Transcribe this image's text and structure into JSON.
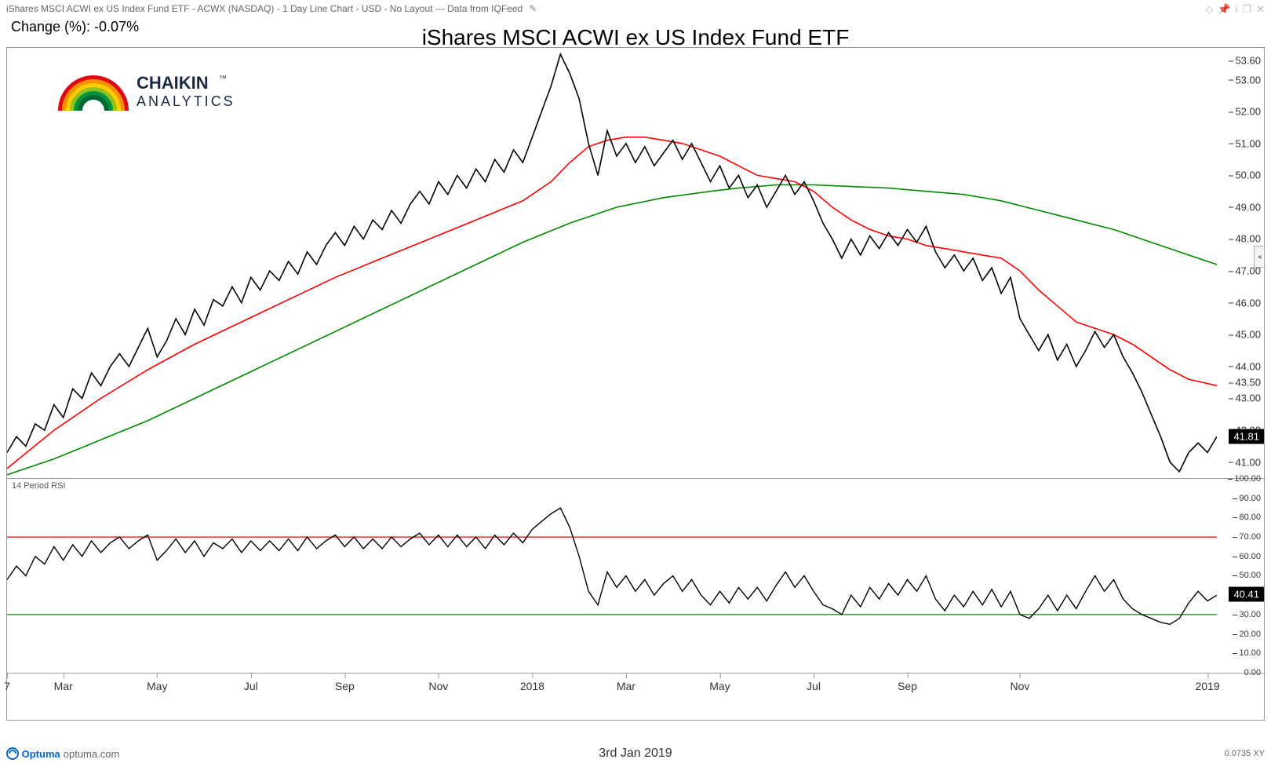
{
  "header": {
    "description": "iShares MSCI ACWI ex US Index Fund ETF - ACWX (NASDAQ) - 1 Day Line Chart - USD - No Layout --- Data from IQFeed",
    "change_label": "Change (%): -0.07%",
    "title": "iShares MSCI ACWI ex US Index Fund ETF"
  },
  "logo": {
    "brand_top": "CHAIKIN",
    "brand_bottom": "ANALYTICS",
    "tm": "™",
    "arc_colors": [
      "#e30613",
      "#f39200",
      "#ffcc00",
      "#95c11f",
      "#009640",
      "#006633"
    ]
  },
  "footer": {
    "software": "Optuma",
    "url": "optuma.com",
    "date": "3rd Jan 2019",
    "scale_info": "0.0735 XY"
  },
  "price_chart": {
    "type": "line",
    "ylim": [
      40.5,
      54.0
    ],
    "yticks": [
      41.0,
      41.81,
      42.0,
      43.0,
      43.5,
      44.0,
      45.0,
      46.0,
      47.0,
      48.0,
      49.0,
      50.0,
      51.0,
      52.0,
      53.0,
      53.6
    ],
    "current_value": 41.81,
    "current_label": "41.81",
    "background_color": "#ffffff",
    "axis_color": "#333333",
    "series": {
      "price": {
        "color": "#000000",
        "width": 1.6
      },
      "ma_fast": {
        "color": "#ff0000",
        "width": 1.6
      },
      "ma_slow": {
        "color": "#008800",
        "width": 1.6
      }
    },
    "price_data": [
      [
        0,
        41.3
      ],
      [
        1,
        41.8
      ],
      [
        2,
        41.5
      ],
      [
        3,
        42.2
      ],
      [
        4,
        42.0
      ],
      [
        5,
        42.8
      ],
      [
        6,
        42.4
      ],
      [
        7,
        43.3
      ],
      [
        8,
        43.0
      ],
      [
        9,
        43.8
      ],
      [
        10,
        43.4
      ],
      [
        11,
        44.0
      ],
      [
        12,
        44.4
      ],
      [
        13,
        44.0
      ],
      [
        14,
        44.6
      ],
      [
        15,
        45.2
      ],
      [
        16,
        44.3
      ],
      [
        17,
        44.8
      ],
      [
        18,
        45.5
      ],
      [
        19,
        45.0
      ],
      [
        20,
        45.8
      ],
      [
        21,
        45.3
      ],
      [
        22,
        46.1
      ],
      [
        23,
        45.9
      ],
      [
        24,
        46.5
      ],
      [
        25,
        46.0
      ],
      [
        26,
        46.8
      ],
      [
        27,
        46.4
      ],
      [
        28,
        47.0
      ],
      [
        29,
        46.7
      ],
      [
        30,
        47.3
      ],
      [
        31,
        46.9
      ],
      [
        32,
        47.6
      ],
      [
        33,
        47.2
      ],
      [
        34,
        47.8
      ],
      [
        35,
        48.2
      ],
      [
        36,
        47.8
      ],
      [
        37,
        48.4
      ],
      [
        38,
        48.0
      ],
      [
        39,
        48.6
      ],
      [
        40,
        48.3
      ],
      [
        41,
        48.9
      ],
      [
        42,
        48.5
      ],
      [
        43,
        49.1
      ],
      [
        44,
        49.5
      ],
      [
        45,
        49.1
      ],
      [
        46,
        49.8
      ],
      [
        47,
        49.4
      ],
      [
        48,
        50.0
      ],
      [
        49,
        49.6
      ],
      [
        50,
        50.2
      ],
      [
        51,
        49.8
      ],
      [
        52,
        50.5
      ],
      [
        53,
        50.1
      ],
      [
        54,
        50.8
      ],
      [
        55,
        50.4
      ],
      [
        56,
        51.2
      ],
      [
        57,
        52.0
      ],
      [
        58,
        52.8
      ],
      [
        59,
        53.8
      ],
      [
        60,
        53.2
      ],
      [
        61,
        52.4
      ],
      [
        62,
        51.0
      ],
      [
        63,
        50.0
      ],
      [
        64,
        51.4
      ],
      [
        65,
        50.6
      ],
      [
        66,
        51.0
      ],
      [
        67,
        50.4
      ],
      [
        68,
        50.9
      ],
      [
        69,
        50.3
      ],
      [
        70,
        50.7
      ],
      [
        71,
        51.1
      ],
      [
        72,
        50.5
      ],
      [
        73,
        51.0
      ],
      [
        74,
        50.4
      ],
      [
        75,
        49.8
      ],
      [
        76,
        50.3
      ],
      [
        77,
        49.6
      ],
      [
        78,
        50.0
      ],
      [
        79,
        49.3
      ],
      [
        80,
        49.7
      ],
      [
        81,
        49.0
      ],
      [
        82,
        49.5
      ],
      [
        83,
        50.0
      ],
      [
        84,
        49.4
      ],
      [
        85,
        49.8
      ],
      [
        86,
        49.2
      ],
      [
        87,
        48.5
      ],
      [
        88,
        48.0
      ],
      [
        89,
        47.4
      ],
      [
        90,
        48.0
      ],
      [
        91,
        47.5
      ],
      [
        92,
        48.1
      ],
      [
        93,
        47.7
      ],
      [
        94,
        48.2
      ],
      [
        95,
        47.8
      ],
      [
        96,
        48.3
      ],
      [
        97,
        47.9
      ],
      [
        98,
        48.4
      ],
      [
        99,
        47.6
      ],
      [
        100,
        47.1
      ],
      [
        101,
        47.5
      ],
      [
        102,
        47.0
      ],
      [
        103,
        47.4
      ],
      [
        104,
        46.7
      ],
      [
        105,
        47.1
      ],
      [
        106,
        46.3
      ],
      [
        107,
        46.8
      ],
      [
        108,
        45.5
      ],
      [
        109,
        45.0
      ],
      [
        110,
        44.5
      ],
      [
        111,
        45.0
      ],
      [
        112,
        44.2
      ],
      [
        113,
        44.7
      ],
      [
        114,
        44.0
      ],
      [
        115,
        44.5
      ],
      [
        116,
        45.1
      ],
      [
        117,
        44.6
      ],
      [
        118,
        45.0
      ],
      [
        119,
        44.3
      ],
      [
        120,
        43.8
      ],
      [
        121,
        43.2
      ],
      [
        122,
        42.5
      ],
      [
        123,
        41.8
      ],
      [
        124,
        41.0
      ],
      [
        125,
        40.7
      ],
      [
        126,
        41.3
      ],
      [
        127,
        41.6
      ],
      [
        128,
        41.3
      ],
      [
        129,
        41.8
      ]
    ],
    "ma_fast_data": [
      [
        0,
        40.8
      ],
      [
        5,
        42.0
      ],
      [
        10,
        43.0
      ],
      [
        15,
        43.9
      ],
      [
        20,
        44.7
      ],
      [
        25,
        45.4
      ],
      [
        30,
        46.1
      ],
      [
        35,
        46.8
      ],
      [
        40,
        47.4
      ],
      [
        45,
        48.0
      ],
      [
        50,
        48.6
      ],
      [
        55,
        49.2
      ],
      [
        58,
        49.8
      ],
      [
        60,
        50.4
      ],
      [
        62,
        50.9
      ],
      [
        64,
        51.1
      ],
      [
        66,
        51.2
      ],
      [
        68,
        51.2
      ],
      [
        70,
        51.1
      ],
      [
        72,
        51.0
      ],
      [
        74,
        50.8
      ],
      [
        76,
        50.6
      ],
      [
        78,
        50.3
      ],
      [
        80,
        50.0
      ],
      [
        82,
        49.9
      ],
      [
        84,
        49.8
      ],
      [
        86,
        49.5
      ],
      [
        88,
        49.0
      ],
      [
        90,
        48.6
      ],
      [
        92,
        48.3
      ],
      [
        94,
        48.1
      ],
      [
        96,
        48.0
      ],
      [
        98,
        47.8
      ],
      [
        100,
        47.7
      ],
      [
        102,
        47.6
      ],
      [
        104,
        47.5
      ],
      [
        106,
        47.4
      ],
      [
        108,
        47.0
      ],
      [
        110,
        46.4
      ],
      [
        112,
        45.9
      ],
      [
        114,
        45.4
      ],
      [
        116,
        45.2
      ],
      [
        118,
        45.0
      ],
      [
        120,
        44.7
      ],
      [
        122,
        44.3
      ],
      [
        124,
        43.9
      ],
      [
        126,
        43.6
      ],
      [
        129,
        43.4
      ]
    ],
    "ma_slow_data": [
      [
        0,
        40.6
      ],
      [
        5,
        41.1
      ],
      [
        10,
        41.7
      ],
      [
        15,
        42.3
      ],
      [
        20,
        43.0
      ],
      [
        25,
        43.7
      ],
      [
        30,
        44.4
      ],
      [
        35,
        45.1
      ],
      [
        40,
        45.8
      ],
      [
        45,
        46.5
      ],
      [
        50,
        47.2
      ],
      [
        55,
        47.9
      ],
      [
        60,
        48.5
      ],
      [
        65,
        49.0
      ],
      [
        70,
        49.3
      ],
      [
        75,
        49.5
      ],
      [
        78,
        49.6
      ],
      [
        82,
        49.7
      ],
      [
        86,
        49.7
      ],
      [
        90,
        49.65
      ],
      [
        94,
        49.6
      ],
      [
        98,
        49.5
      ],
      [
        102,
        49.4
      ],
      [
        106,
        49.2
      ],
      [
        110,
        48.9
      ],
      [
        114,
        48.6
      ],
      [
        118,
        48.3
      ],
      [
        122,
        47.9
      ],
      [
        126,
        47.5
      ],
      [
        129,
        47.2
      ]
    ]
  },
  "rsi_chart": {
    "type": "line",
    "label": "14 Period RSI",
    "ylim": [
      0,
      100
    ],
    "yticks": [
      0,
      10,
      20,
      30,
      40,
      50,
      60,
      70,
      80,
      90,
      100
    ],
    "current_value": 40.41,
    "current_label": "40.41",
    "overbought": {
      "value": 70,
      "color": "#ff0000",
      "width": 1.2
    },
    "oversold": {
      "value": 30,
      "color": "#008800",
      "width": 1.2
    },
    "series_color": "#000000",
    "series_width": 1.4,
    "data": [
      [
        0,
        48
      ],
      [
        1,
        55
      ],
      [
        2,
        50
      ],
      [
        3,
        60
      ],
      [
        4,
        56
      ],
      [
        5,
        65
      ],
      [
        6,
        58
      ],
      [
        7,
        66
      ],
      [
        8,
        60
      ],
      [
        9,
        68
      ],
      [
        10,
        62
      ],
      [
        11,
        67
      ],
      [
        12,
        70
      ],
      [
        13,
        64
      ],
      [
        14,
        68
      ],
      [
        15,
        71
      ],
      [
        16,
        58
      ],
      [
        17,
        63
      ],
      [
        18,
        69
      ],
      [
        19,
        62
      ],
      [
        20,
        68
      ],
      [
        21,
        60
      ],
      [
        22,
        67
      ],
      [
        23,
        64
      ],
      [
        24,
        69
      ],
      [
        25,
        62
      ],
      [
        26,
        68
      ],
      [
        27,
        63
      ],
      [
        28,
        68
      ],
      [
        29,
        63
      ],
      [
        30,
        69
      ],
      [
        31,
        63
      ],
      [
        32,
        70
      ],
      [
        33,
        64
      ],
      [
        34,
        68
      ],
      [
        35,
        71
      ],
      [
        36,
        65
      ],
      [
        37,
        70
      ],
      [
        38,
        64
      ],
      [
        39,
        69
      ],
      [
        40,
        64
      ],
      [
        41,
        70
      ],
      [
        42,
        65
      ],
      [
        43,
        69
      ],
      [
        44,
        72
      ],
      [
        45,
        66
      ],
      [
        46,
        71
      ],
      [
        47,
        65
      ],
      [
        48,
        71
      ],
      [
        49,
        65
      ],
      [
        50,
        70
      ],
      [
        51,
        64
      ],
      [
        52,
        71
      ],
      [
        53,
        66
      ],
      [
        54,
        72
      ],
      [
        55,
        67
      ],
      [
        56,
        74
      ],
      [
        57,
        78
      ],
      [
        58,
        82
      ],
      [
        59,
        85
      ],
      [
        60,
        75
      ],
      [
        61,
        60
      ],
      [
        62,
        42
      ],
      [
        63,
        35
      ],
      [
        64,
        52
      ],
      [
        65,
        44
      ],
      [
        66,
        50
      ],
      [
        67,
        42
      ],
      [
        68,
        48
      ],
      [
        69,
        40
      ],
      [
        70,
        46
      ],
      [
        71,
        50
      ],
      [
        72,
        42
      ],
      [
        73,
        48
      ],
      [
        74,
        40
      ],
      [
        75,
        35
      ],
      [
        76,
        42
      ],
      [
        77,
        36
      ],
      [
        78,
        44
      ],
      [
        79,
        38
      ],
      [
        80,
        44
      ],
      [
        81,
        37
      ],
      [
        82,
        45
      ],
      [
        83,
        52
      ],
      [
        84,
        44
      ],
      [
        85,
        50
      ],
      [
        86,
        42
      ],
      [
        87,
        35
      ],
      [
        88,
        33
      ],
      [
        89,
        30
      ],
      [
        90,
        40
      ],
      [
        91,
        34
      ],
      [
        92,
        44
      ],
      [
        93,
        38
      ],
      [
        94,
        46
      ],
      [
        95,
        40
      ],
      [
        96,
        48
      ],
      [
        97,
        42
      ],
      [
        98,
        50
      ],
      [
        99,
        38
      ],
      [
        100,
        32
      ],
      [
        101,
        40
      ],
      [
        102,
        34
      ],
      [
        103,
        42
      ],
      [
        104,
        35
      ],
      [
        105,
        43
      ],
      [
        106,
        34
      ],
      [
        107,
        42
      ],
      [
        108,
        30
      ],
      [
        109,
        28
      ],
      [
        110,
        33
      ],
      [
        111,
        40
      ],
      [
        112,
        32
      ],
      [
        113,
        40
      ],
      [
        114,
        33
      ],
      [
        115,
        42
      ],
      [
        116,
        50
      ],
      [
        117,
        42
      ],
      [
        118,
        48
      ],
      [
        119,
        38
      ],
      [
        120,
        33
      ],
      [
        121,
        30
      ],
      [
        122,
        28
      ],
      [
        123,
        26
      ],
      [
        124,
        25
      ],
      [
        125,
        28
      ],
      [
        126,
        36
      ],
      [
        127,
        42
      ],
      [
        128,
        37
      ],
      [
        129,
        40
      ]
    ]
  },
  "x_axis": {
    "domain": [
      0,
      129
    ],
    "ticks": [
      {
        "pos": 0,
        "label": "7"
      },
      {
        "pos": 6,
        "label": "Mar"
      },
      {
        "pos": 16,
        "label": "May"
      },
      {
        "pos": 26,
        "label": "Jul"
      },
      {
        "pos": 36,
        "label": "Sep"
      },
      {
        "pos": 46,
        "label": "Nov"
      },
      {
        "pos": 56,
        "label": "2018"
      },
      {
        "pos": 66,
        "label": "Mar"
      },
      {
        "pos": 76,
        "label": "May"
      },
      {
        "pos": 86,
        "label": "Jul"
      },
      {
        "pos": 96,
        "label": "Sep"
      },
      {
        "pos": 108,
        "label": "Nov"
      },
      {
        "pos": 128,
        "label": "2019"
      }
    ]
  }
}
